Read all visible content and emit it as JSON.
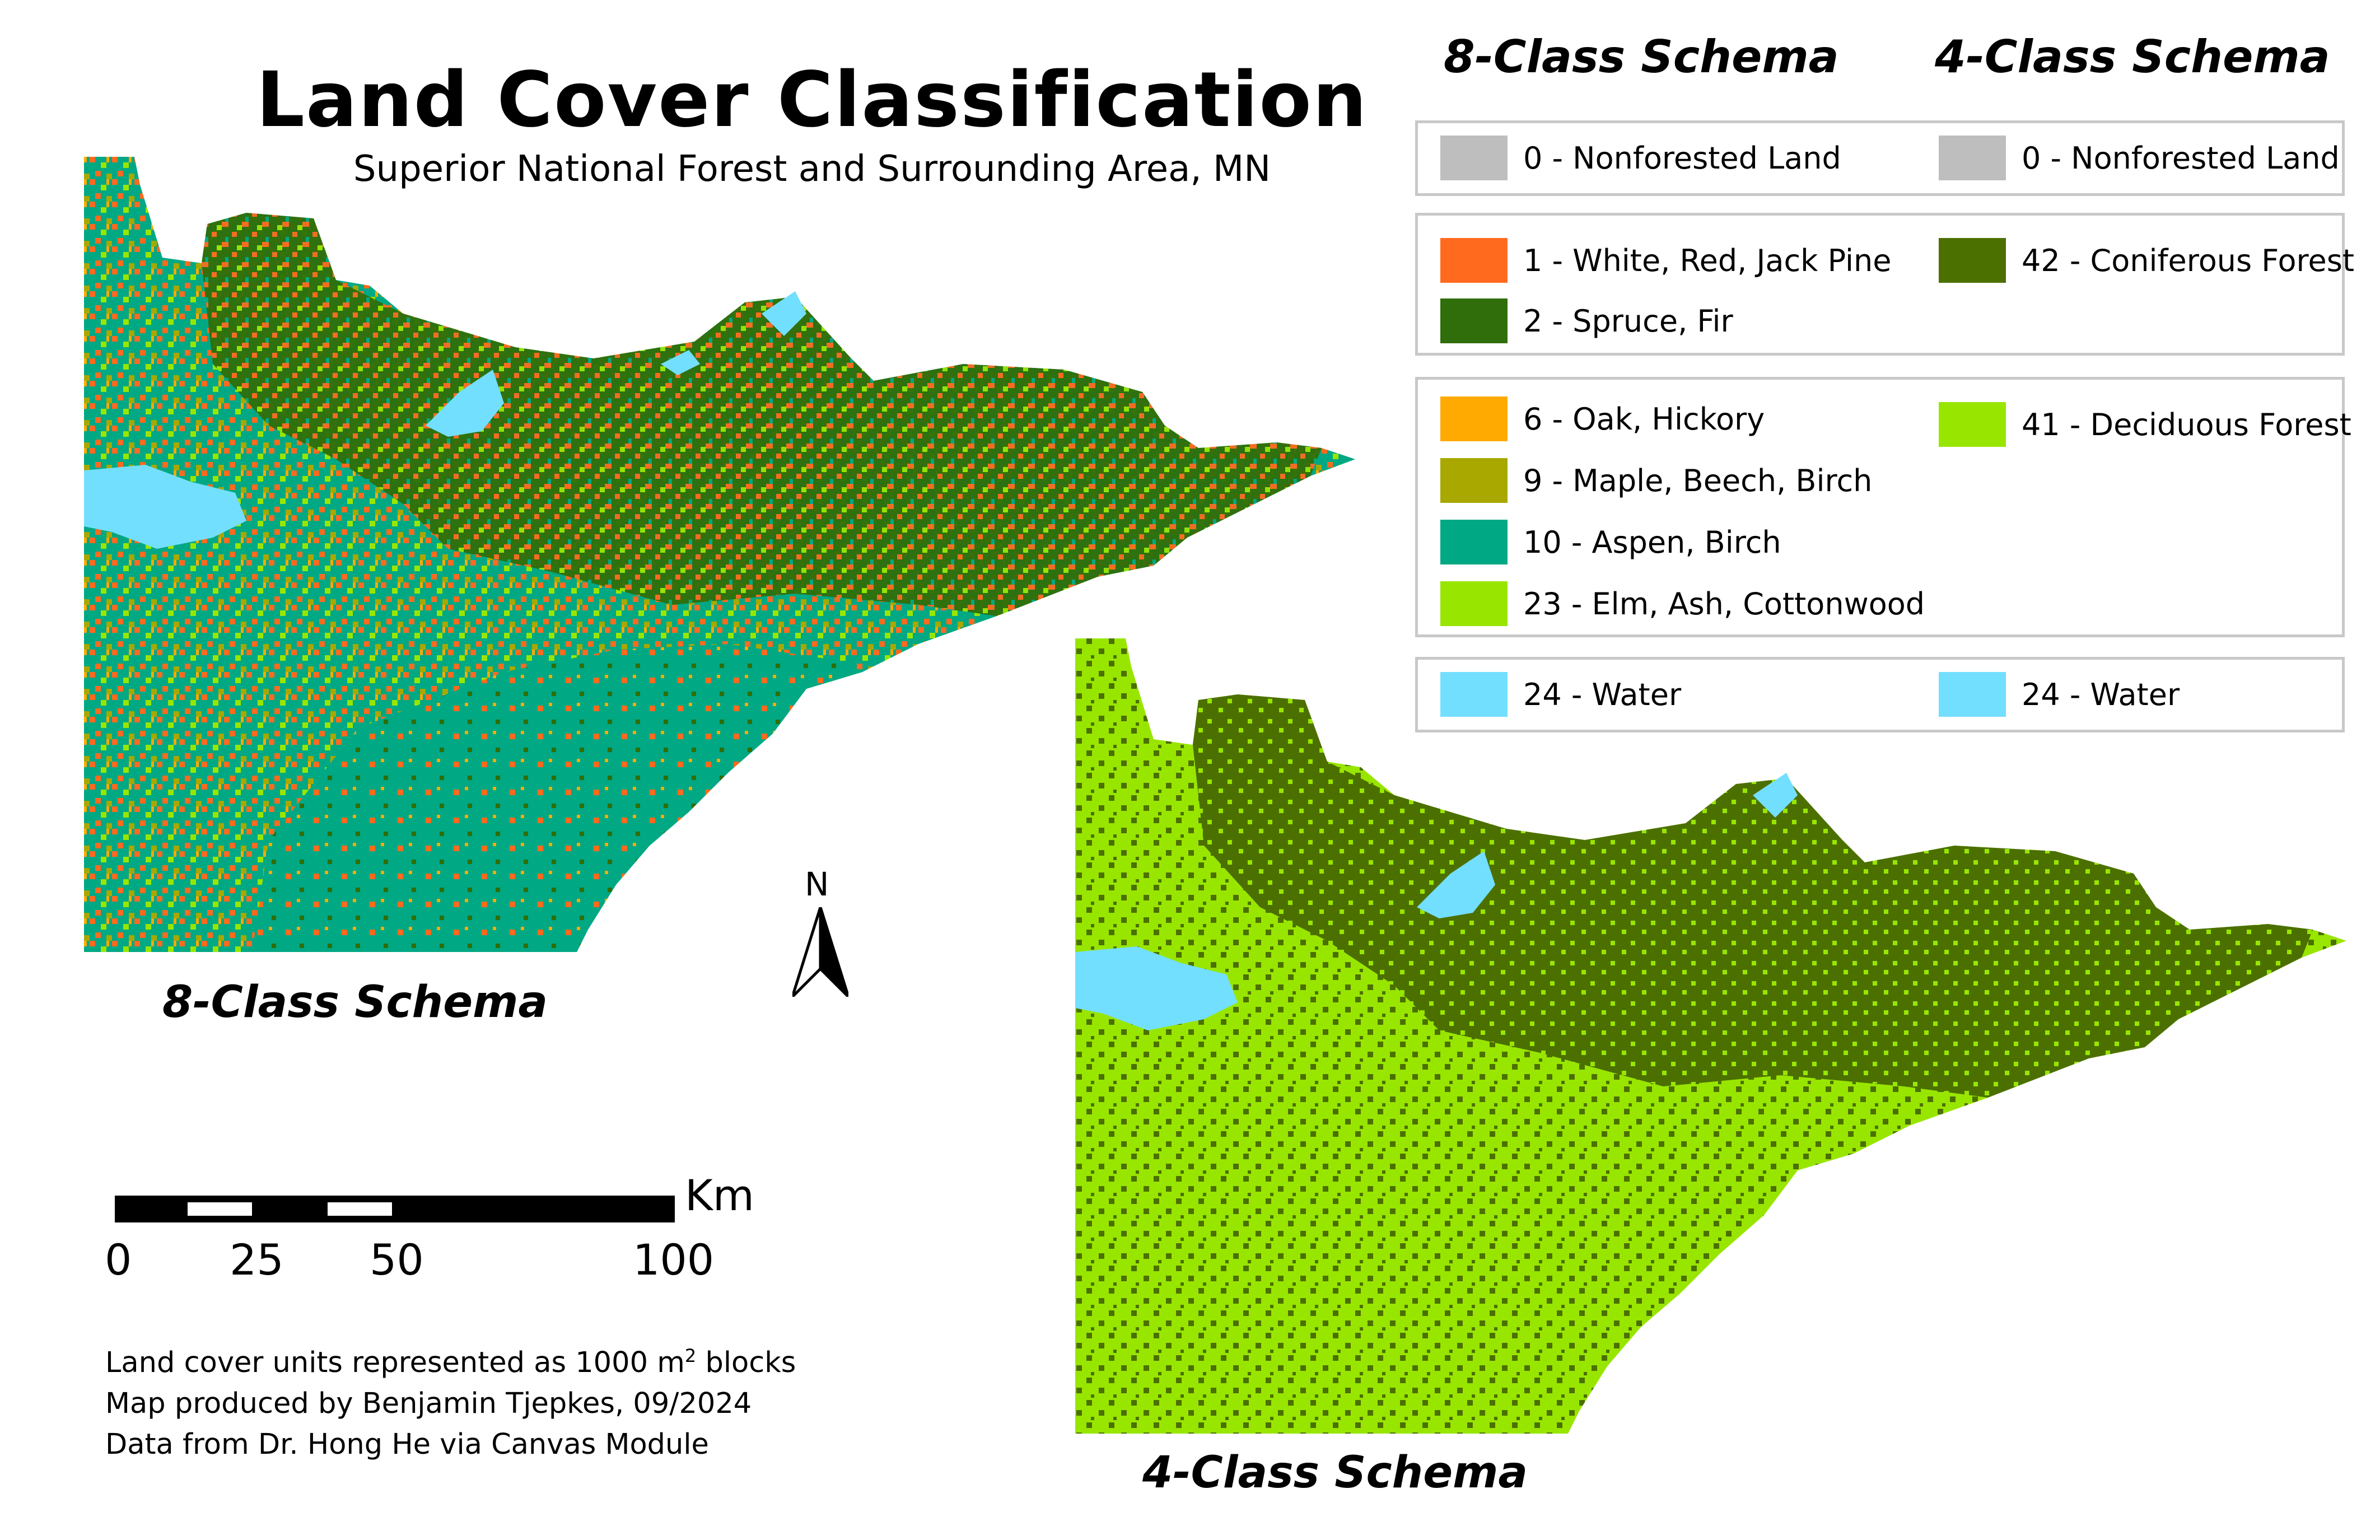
{
  "title": "Land Cover Classification",
  "subtitle": "Superior National Forest and Surrounding Area, MN",
  "maps": {
    "left_label": "8-Class Schema",
    "right_label": "4-Class Schema"
  },
  "legend": {
    "header_8": "8-Class Schema",
    "header_4": "4-Class Schema",
    "groups": [
      {
        "left": [
          {
            "label": "0 - Nonforested Land",
            "color": "#bebebe"
          }
        ],
        "right": [
          {
            "label": "0 - Nonforested Land",
            "color": "#bebebe"
          }
        ]
      },
      {
        "left": [
          {
            "label": "1 - White, Red, Jack Pine",
            "color": "#ff6a1f"
          },
          {
            "label": "2 - Spruce, Fir",
            "color": "#2f6e0a"
          }
        ],
        "right": [
          {
            "label": "42 - Coniferous Forest",
            "color": "#4c7000"
          }
        ]
      },
      {
        "left": [
          {
            "label": "6 - Oak, Hickory",
            "color": "#ffaa00"
          },
          {
            "label": "9 - Maple, Beech, Birch",
            "color": "#a8a800"
          },
          {
            "label": "10 - Aspen, Birch",
            "color": "#00a884"
          },
          {
            "label": "23 - Elm, Ash, Cottonwood",
            "color": "#98e600"
          }
        ],
        "right": [
          {
            "label": "41 - Deciduous Forest",
            "color": "#98e600"
          }
        ]
      },
      {
        "left": [
          {
            "label": "24 - Water",
            "color": "#73dfff"
          }
        ],
        "right": [
          {
            "label": "24 - Water",
            "color": "#73dfff"
          }
        ]
      }
    ]
  },
  "north_arrow": {
    "label": "N"
  },
  "scale_bar": {
    "unit": "Km",
    "ticks": [
      "0",
      "25",
      "50",
      "100"
    ]
  },
  "credits": {
    "line1": "Land cover units represented as 1000 m",
    "line1_sup": "2",
    "line1_end": " blocks",
    "line2": "Map produced by Benjamin Tjepkes, 09/2024",
    "line3": "Data from Dr. Hong He via Canvas Module"
  }
}
